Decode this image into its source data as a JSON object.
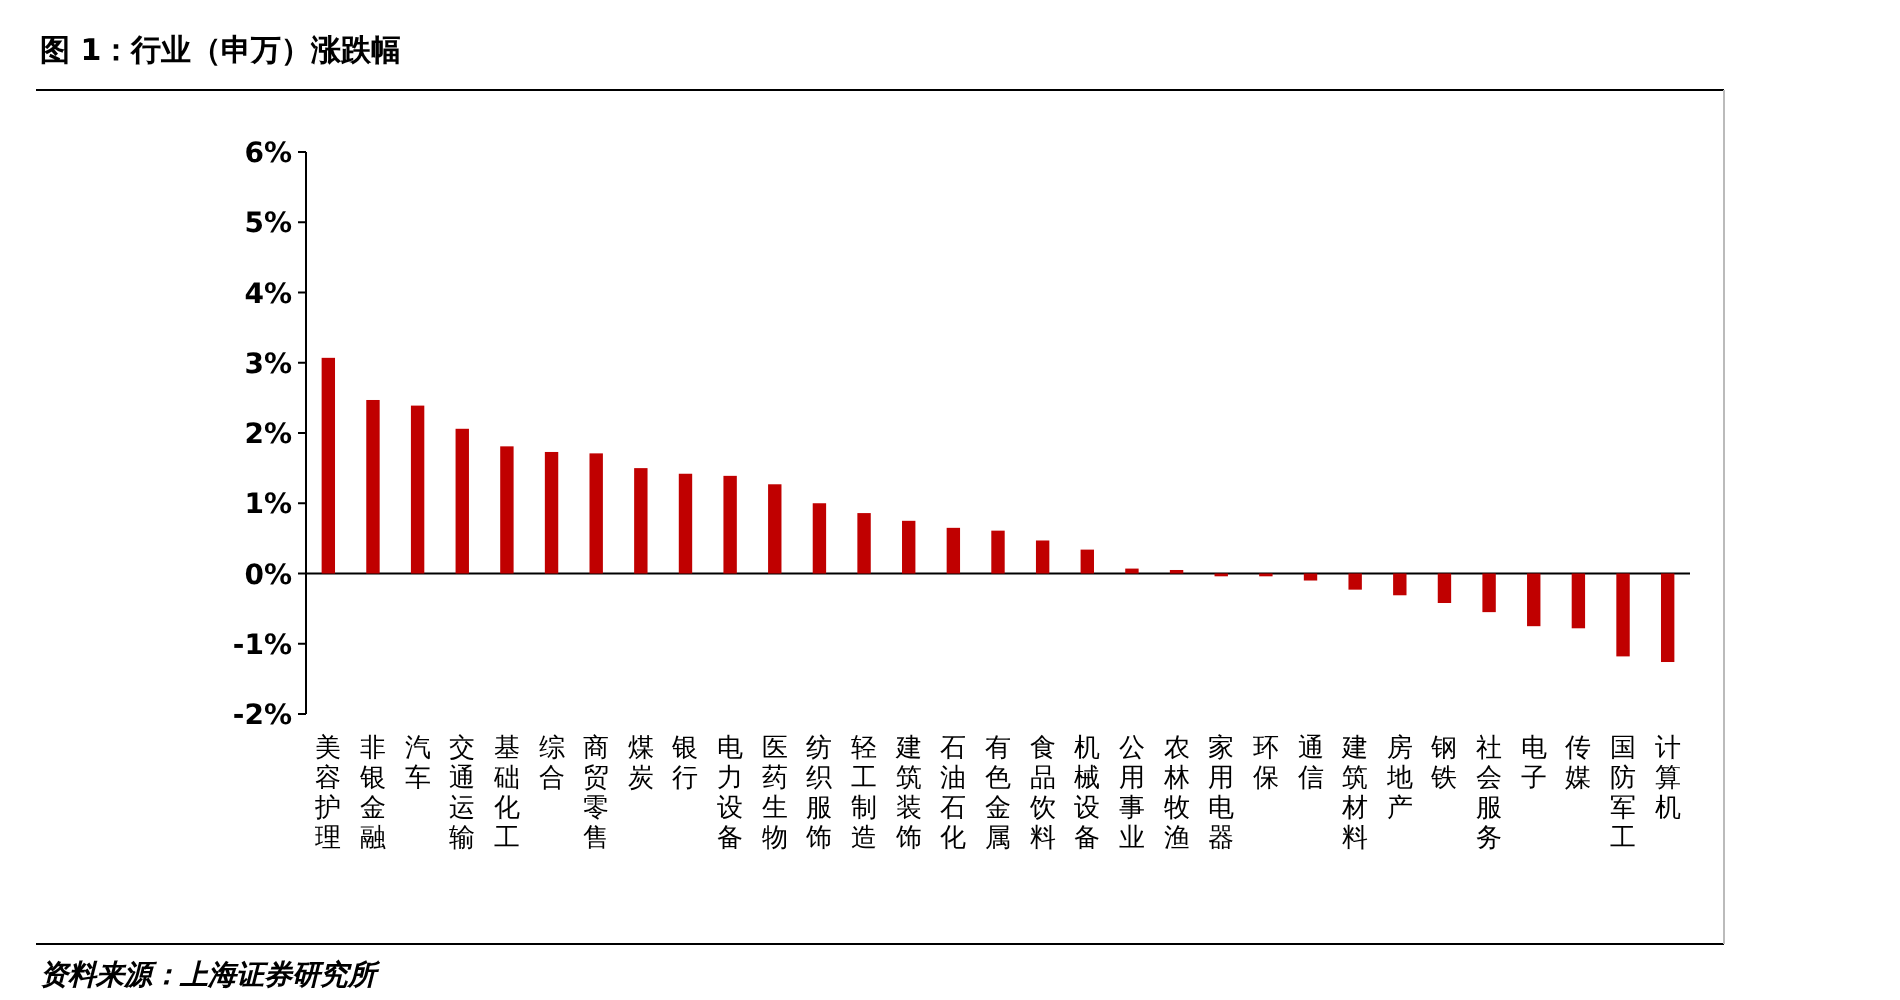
{
  "chart_data": {
    "type": "bar",
    "title": "图 1：行业（申万）涨跌幅",
    "categories": [
      "美容护理",
      "非银金融",
      "汽车",
      "交通运输",
      "基础化工",
      "综合",
      "商贸零售",
      "煤炭",
      "银行",
      "电力设备",
      "医药生物",
      "纺织服饰",
      "轻工制造",
      "建筑装饰",
      "石油石化",
      "有色金属",
      "食品饮料",
      "机械设备",
      "公用事业",
      "农林牧渔",
      "家用电器",
      "环保",
      "通信",
      "建筑材料",
      "房地产",
      "钢铁",
      "社会服务",
      "电子",
      "传媒",
      "国防军工",
      "计算机"
    ],
    "values": [
      3.07,
      2.47,
      2.39,
      2.06,
      1.81,
      1.73,
      1.71,
      1.5,
      1.42,
      1.39,
      1.27,
      1.0,
      0.86,
      0.75,
      0.65,
      0.61,
      0.47,
      0.34,
      0.07,
      0.05,
      -0.04,
      -0.04,
      -0.1,
      -0.23,
      -0.31,
      -0.42,
      -0.55,
      -0.75,
      -0.78,
      -1.18,
      -1.26
    ],
    "color": "#c00000",
    "ylim": [
      -2,
      6
    ],
    "yticks": [
      {
        "value": -2,
        "label": "-2%"
      },
      {
        "value": -1,
        "label": "-1%"
      },
      {
        "value": 0,
        "label": "0%"
      },
      {
        "value": 1,
        "label": "1%"
      },
      {
        "value": 2,
        "label": "2%"
      },
      {
        "value": 3,
        "label": "3%"
      },
      {
        "value": 4,
        "label": "4%"
      },
      {
        "value": 5,
        "label": "5%"
      },
      {
        "value": 6,
        "label": "6%"
      }
    ],
    "annotations": [
      "资料来源：上海证券研究所"
    ]
  }
}
